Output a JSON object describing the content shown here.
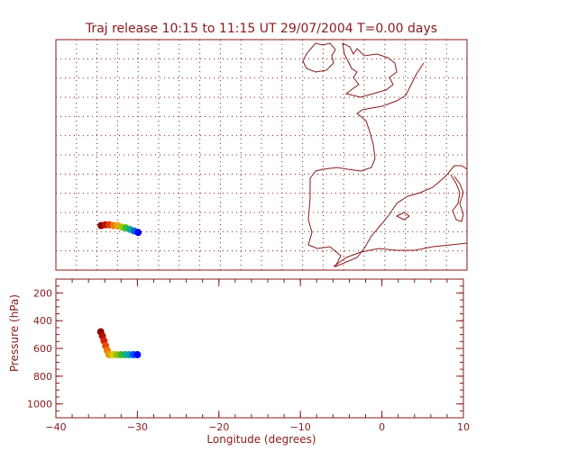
{
  "title": "Traj release 10:15 to 11:15 UT 29/07/2004    T=0.00 days",
  "colors": {
    "frame": "#8a1a1a",
    "traj_start": "#8b0000",
    "traj_end": "#0000ff"
  },
  "chart_data": [
    {
      "type": "scatter",
      "panel": "map",
      "title": "Traj release 10:15 to 11:15 UT 29/07/2004    T=0.00 days",
      "xlim": [
        -40,
        10
      ],
      "ylim": [
        30,
        60
      ],
      "grid": true,
      "series": [
        {
          "x": [
            -34.5,
            -34.0,
            -33.5,
            -33.0,
            -32.5,
            -32.0,
            -31.5,
            -31.0,
            -30.5,
            -30.0
          ],
          "y": [
            35.8,
            35.9,
            35.9,
            35.8,
            35.8,
            35.6,
            35.5,
            35.3,
            35.1,
            34.9
          ]
        }
      ]
    },
    {
      "type": "scatter",
      "panel": "pressure",
      "xlabel": "Longitude  (degrees)",
      "ylabel": "Pressure  (hPa)",
      "xlim": [
        -40,
        10
      ],
      "ylim": [
        1100,
        100
      ],
      "xticks": [
        "-40",
        "-30",
        "-20",
        "-10",
        "0",
        "10"
      ],
      "yticks": [
        "200",
        "400",
        "600",
        "800",
        "1000"
      ],
      "series": [
        {
          "x": [
            -34.5,
            -34.3,
            -34.1,
            -33.9,
            -33.7,
            -33.5,
            -33.0,
            -32.5,
            -32.0,
            -31.5,
            -31.0,
            -30.5,
            -30.0
          ],
          "y": [
            480,
            510,
            545,
            580,
            615,
            645,
            645,
            645,
            645,
            645,
            645,
            645,
            645
          ]
        }
      ]
    }
  ]
}
